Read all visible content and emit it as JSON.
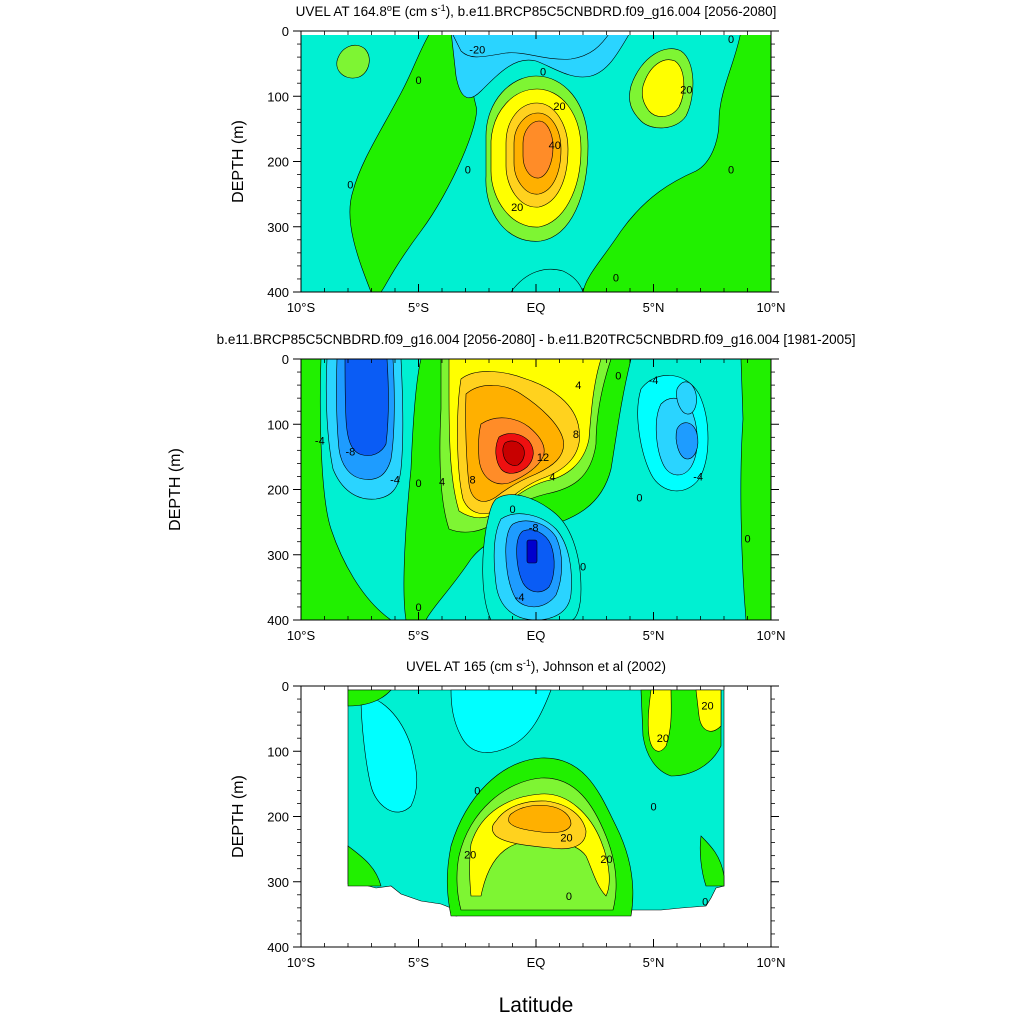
{
  "figure": {
    "xlabel": "Latitude"
  },
  "chart_data": [
    {
      "type": "contour",
      "title": "UVEL AT 164.8°E (cm s-1), b.e11.BRCP85C5CNBDRD.f09_g16.004 [2056-2080]",
      "title_parts": [
        "UVEL AT 164.8",
        "o",
        "E (cm s",
        "-1",
        "), b.e11.BRCP85C5CNBDRD.f09_g16.004 [2056-2080]"
      ],
      "ylabel": "DEPTH (m)",
      "xlim": [
        -10,
        10
      ],
      "ylim": [
        400,
        0
      ],
      "x_ticks": [
        -10,
        -5,
        0,
        5,
        10
      ],
      "x_tick_labels": [
        "10°S",
        "5°S",
        "EQ",
        "5°N",
        "10°N"
      ],
      "y_ticks": [
        0,
        100,
        200,
        300,
        400
      ],
      "y_tick_labels": [
        "0",
        "100",
        "200",
        "300",
        "400"
      ],
      "contour_labels": [
        {
          "lat": -2.5,
          "depth": 28,
          "text": "-20"
        },
        {
          "lat": 0.3,
          "depth": 62,
          "text": "0"
        },
        {
          "lat": 1.0,
          "depth": 115,
          "text": "20"
        },
        {
          "lat": 0.8,
          "depth": 175,
          "text": "40"
        },
        {
          "lat": -0.8,
          "depth": 270,
          "text": "20"
        },
        {
          "lat": -2.9,
          "depth": 212,
          "text": "0"
        },
        {
          "lat": -5.0,
          "depth": 75,
          "text": "0"
        },
        {
          "lat": -7.9,
          "depth": 235,
          "text": "0"
        },
        {
          "lat": 6.4,
          "depth": 90,
          "text": "20"
        },
        {
          "lat": 8.3,
          "depth": 212,
          "text": "0"
        },
        {
          "lat": 8.3,
          "depth": 12,
          "text": "0"
        },
        {
          "lat": 3.4,
          "depth": 378,
          "text": "0"
        }
      ]
    },
    {
      "type": "contour",
      "title": "b.e11.BRCP85C5CNBDRD.f09_g16.004 [2056-2080] - b.e11.B20TRC5CNBDRD.f09_g16.004 [1981-2005]",
      "ylabel": "DEPTH (m)",
      "xlim": [
        -10,
        10
      ],
      "ylim": [
        400,
        0
      ],
      "x_ticks": [
        -10,
        -5,
        0,
        5,
        10
      ],
      "x_tick_labels": [
        "10°S",
        "5°S",
        "EQ",
        "5°N",
        "10°N"
      ],
      "y_ticks": [
        0,
        100,
        200,
        300,
        400
      ],
      "y_tick_labels": [
        "0",
        "100",
        "200",
        "300",
        "400"
      ],
      "contour_labels": [
        {
          "lat": -9.2,
          "depth": 125,
          "text": "-4"
        },
        {
          "lat": -7.9,
          "depth": 142,
          "text": "-8"
        },
        {
          "lat": -6.0,
          "depth": 185,
          "text": "-4"
        },
        {
          "lat": -5.0,
          "depth": 190,
          "text": "0"
        },
        {
          "lat": -4.0,
          "depth": 188,
          "text": "4"
        },
        {
          "lat": -2.7,
          "depth": 185,
          "text": "8"
        },
        {
          "lat": 0.3,
          "depth": 150,
          "text": "12"
        },
        {
          "lat": 0.7,
          "depth": 180,
          "text": "4"
        },
        {
          "lat": 1.8,
          "depth": 40,
          "text": "4"
        },
        {
          "lat": 1.7,
          "depth": 115,
          "text": "8"
        },
        {
          "lat": 3.5,
          "depth": 25,
          "text": "0"
        },
        {
          "lat": 5.0,
          "depth": 32,
          "text": "-4"
        },
        {
          "lat": 6.9,
          "depth": 180,
          "text": "-4"
        },
        {
          "lat": 4.4,
          "depth": 212,
          "text": "0"
        },
        {
          "lat": 9.0,
          "depth": 275,
          "text": "0"
        },
        {
          "lat": -1.0,
          "depth": 230,
          "text": "0"
        },
        {
          "lat": -0.1,
          "depth": 258,
          "text": "-8"
        },
        {
          "lat": -0.7,
          "depth": 365,
          "text": "-4"
        },
        {
          "lat": 2.0,
          "depth": 318,
          "text": "0"
        },
        {
          "lat": -5.0,
          "depth": 380,
          "text": "0"
        }
      ]
    },
    {
      "type": "contour",
      "title": "UVEL AT 165 (cm s-1), Johnson et al (2002)",
      "title_parts": [
        "UVEL AT 165 (cm s",
        "-1",
        "), Johnson et al (2002)"
      ],
      "ylabel": "DEPTH (m)",
      "xlim": [
        -10,
        10
      ],
      "ylim": [
        400,
        0
      ],
      "x_ticks": [
        -10,
        -5,
        0,
        5,
        10
      ],
      "x_tick_labels": [
        "10°S",
        "5°S",
        "EQ",
        "5°N",
        "10°N"
      ],
      "y_ticks": [
        0,
        100,
        200,
        300,
        400
      ],
      "y_tick_labels": [
        "0",
        "100",
        "200",
        "300",
        "400"
      ],
      "contour_labels": [
        {
          "lat": 7.3,
          "depth": 30,
          "text": "20"
        },
        {
          "lat": 5.4,
          "depth": 80,
          "text": "20"
        },
        {
          "lat": -2.5,
          "depth": 160,
          "text": "0"
        },
        {
          "lat": 5.0,
          "depth": 185,
          "text": "0"
        },
        {
          "lat": 1.3,
          "depth": 232,
          "text": "20"
        },
        {
          "lat": -2.8,
          "depth": 258,
          "text": "20"
        },
        {
          "lat": 3.0,
          "depth": 265,
          "text": "20"
        },
        {
          "lat": 1.4,
          "depth": 322,
          "text": "0"
        },
        {
          "lat": 7.2,
          "depth": 330,
          "text": "0"
        }
      ]
    }
  ],
  "colors": {
    "purple": "#8b008b",
    "darkblue": "#0000cd",
    "blue": "#0a5cf5",
    "sky": "#1e9cff",
    "lightblue": "#2ad4ff",
    "aqua": "#00ffff",
    "cyan": "#00f0d2",
    "green": "#7ef533",
    "lgreen": "#21f000",
    "yellow": "#ffff00",
    "gold": "#ffd21e",
    "orange": "#ffb000",
    "dorange": "#ff8c28",
    "red": "#ee1010"
  }
}
